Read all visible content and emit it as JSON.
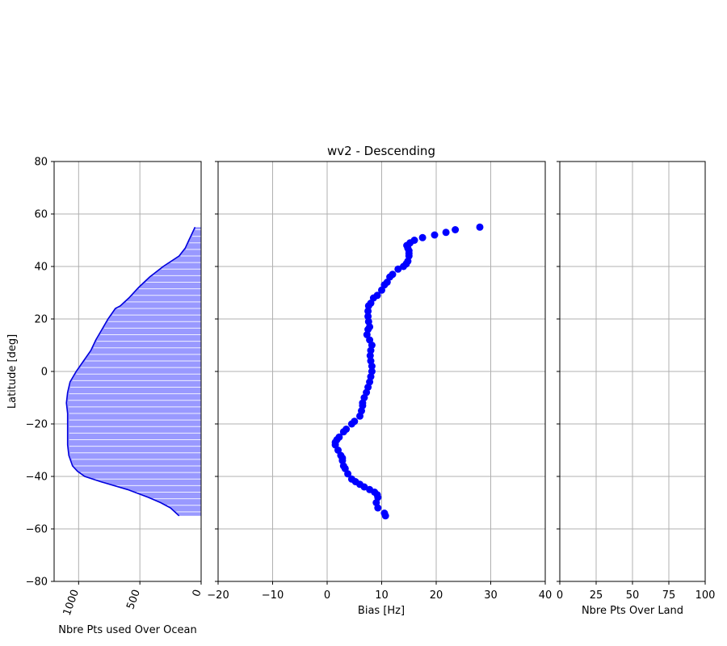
{
  "chart_data": [
    {
      "type": "area",
      "panel": "left",
      "title": "",
      "xlabel": "Nbre Pts used Over Ocean",
      "ylabel": "Latitude [deg]",
      "xlim": [
        1200,
        0
      ],
      "ylim": [
        -80,
        80
      ],
      "x_ticks": [
        "1000",
        "500",
        "0"
      ],
      "x_tick_values": [
        1000,
        500,
        0
      ],
      "x_tick_rotation_deg": 70,
      "y_ticks": [
        "80",
        "60",
        "40",
        "20",
        "0",
        "−20",
        "−40",
        "−60",
        "−80"
      ],
      "y_tick_values": [
        80,
        60,
        40,
        20,
        0,
        -20,
        -40,
        -60,
        -80
      ],
      "grid": true,
      "fill_color": "#9999ff",
      "line_color": "#0000dd",
      "series": [
        {
          "lat": [
            55,
            53,
            50,
            47,
            44,
            40,
            36,
            32,
            28,
            25,
            24,
            20,
            16,
            12,
            8,
            4,
            0,
            -4,
            -8,
            -12,
            -16,
            -20,
            -24,
            -28,
            -32,
            -36,
            -38,
            -40,
            -42,
            -45,
            -48,
            -50,
            -52,
            -55
          ],
          "count": [
            50,
            70,
            100,
            130,
            180,
            310,
            420,
            510,
            590,
            660,
            700,
            760,
            810,
            860,
            900,
            960,
            1020,
            1070,
            1090,
            1100,
            1090,
            1090,
            1090,
            1090,
            1080,
            1050,
            1010,
            950,
            820,
            600,
            430,
            330,
            250,
            180
          ]
        }
      ]
    },
    {
      "type": "scatter",
      "panel": "center",
      "title": "wv2 - Descending",
      "xlabel": "Bias [Hz]",
      "ylabel": "",
      "xlim": [
        -20,
        40
      ],
      "ylim": [
        -80,
        80
      ],
      "x_ticks": [
        "−20",
        "−10",
        "0",
        "10",
        "20",
        "30",
        "40"
      ],
      "x_tick_values": [
        -20,
        -10,
        0,
        10,
        20,
        30,
        40
      ],
      "grid": true,
      "marker_color": "#0000ff",
      "series": [
        {
          "x": [
            28.0,
            23.5,
            21.8,
            19.7,
            17.5,
            16.0,
            15.2,
            14.6,
            14.8,
            15.0,
            15.0,
            15.0,
            14.8,
            14.5,
            14.0,
            13.0,
            12.0,
            11.5,
            11.0,
            10.5,
            10.0,
            9.2,
            8.5,
            8.0,
            7.6,
            7.5,
            7.5,
            7.6,
            7.8,
            7.5,
            7.3,
            7.8,
            8.2,
            8.0,
            7.9,
            8.0,
            8.2,
            8.2,
            8.0,
            7.8,
            7.5,
            7.2,
            6.8,
            6.5,
            6.5,
            6.3,
            6.0,
            5.0,
            4.5,
            3.5,
            3.0,
            2.2,
            1.8,
            1.5,
            1.5,
            2.0,
            2.5,
            2.8,
            2.8,
            3.0,
            3.3,
            3.8,
            4.5,
            5.2,
            6.0,
            6.8,
            7.8,
            8.7,
            9.2,
            9.3,
            9.0,
            9.3,
            10.5,
            10.7
          ],
          "y": [
            55,
            54,
            53,
            52,
            51,
            50,
            49,
            48,
            47,
            46,
            45,
            44,
            42,
            41,
            40,
            39,
            37,
            36,
            34,
            33,
            31,
            29,
            28,
            26,
            25,
            23,
            21,
            19,
            17,
            16,
            14,
            12,
            10,
            8,
            6,
            4,
            2,
            0,
            -2,
            -4,
            -6,
            -8,
            -10,
            -12,
            -13,
            -15,
            -17,
            -19,
            -20,
            -22,
            -23,
            -25,
            -26,
            -27,
            -28,
            -30,
            -32,
            -33,
            -34,
            -36,
            -37,
            -39,
            -41,
            -42,
            -43,
            -44,
            -45,
            -46,
            -47,
            -48,
            -50,
            -52,
            -54,
            -55
          ]
        }
      ]
    },
    {
      "type": "scatter",
      "panel": "right",
      "title": "",
      "xlabel": "Nbre Pts Over Land",
      "ylabel": "",
      "xlim": [
        0,
        100
      ],
      "ylim": [
        -80,
        80
      ],
      "x_ticks": [
        "0",
        "25",
        "50",
        "75",
        "100"
      ],
      "x_tick_values": [
        0,
        25,
        50,
        75,
        100
      ],
      "grid": true,
      "series": []
    }
  ]
}
